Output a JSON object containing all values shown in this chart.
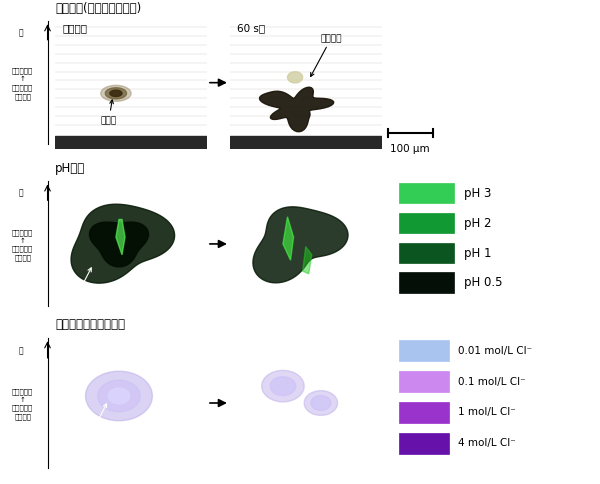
{
  "row1_title": "腐食形態(可視光での観察)",
  "row2_title": "pH分布",
  "row3_title": "塩化物イオン濃度分布",
  "ph_legend": [
    "pH 3",
    "pH 2",
    "pH 1",
    "pH 0.5"
  ],
  "ph_colors": [
    "#33cc55",
    "#119933",
    "#0a5520",
    "#040f08"
  ],
  "cl_legend": [
    "0.01 mol/L Cl⁻",
    "0.1 mol/L Cl⁻",
    "1 mol/L Cl⁻",
    "4 mol/L Cl⁻"
  ],
  "cl_colors": [
    "#aac4f0",
    "#cc88ee",
    "#9933cc",
    "#6611aa"
  ],
  "bg_color": "#ffffff",
  "vis_bg": "#ccc8b8",
  "vis_dark": "#282820",
  "ph_bg": "#33bb44",
  "cl_bg": "#8833bb"
}
